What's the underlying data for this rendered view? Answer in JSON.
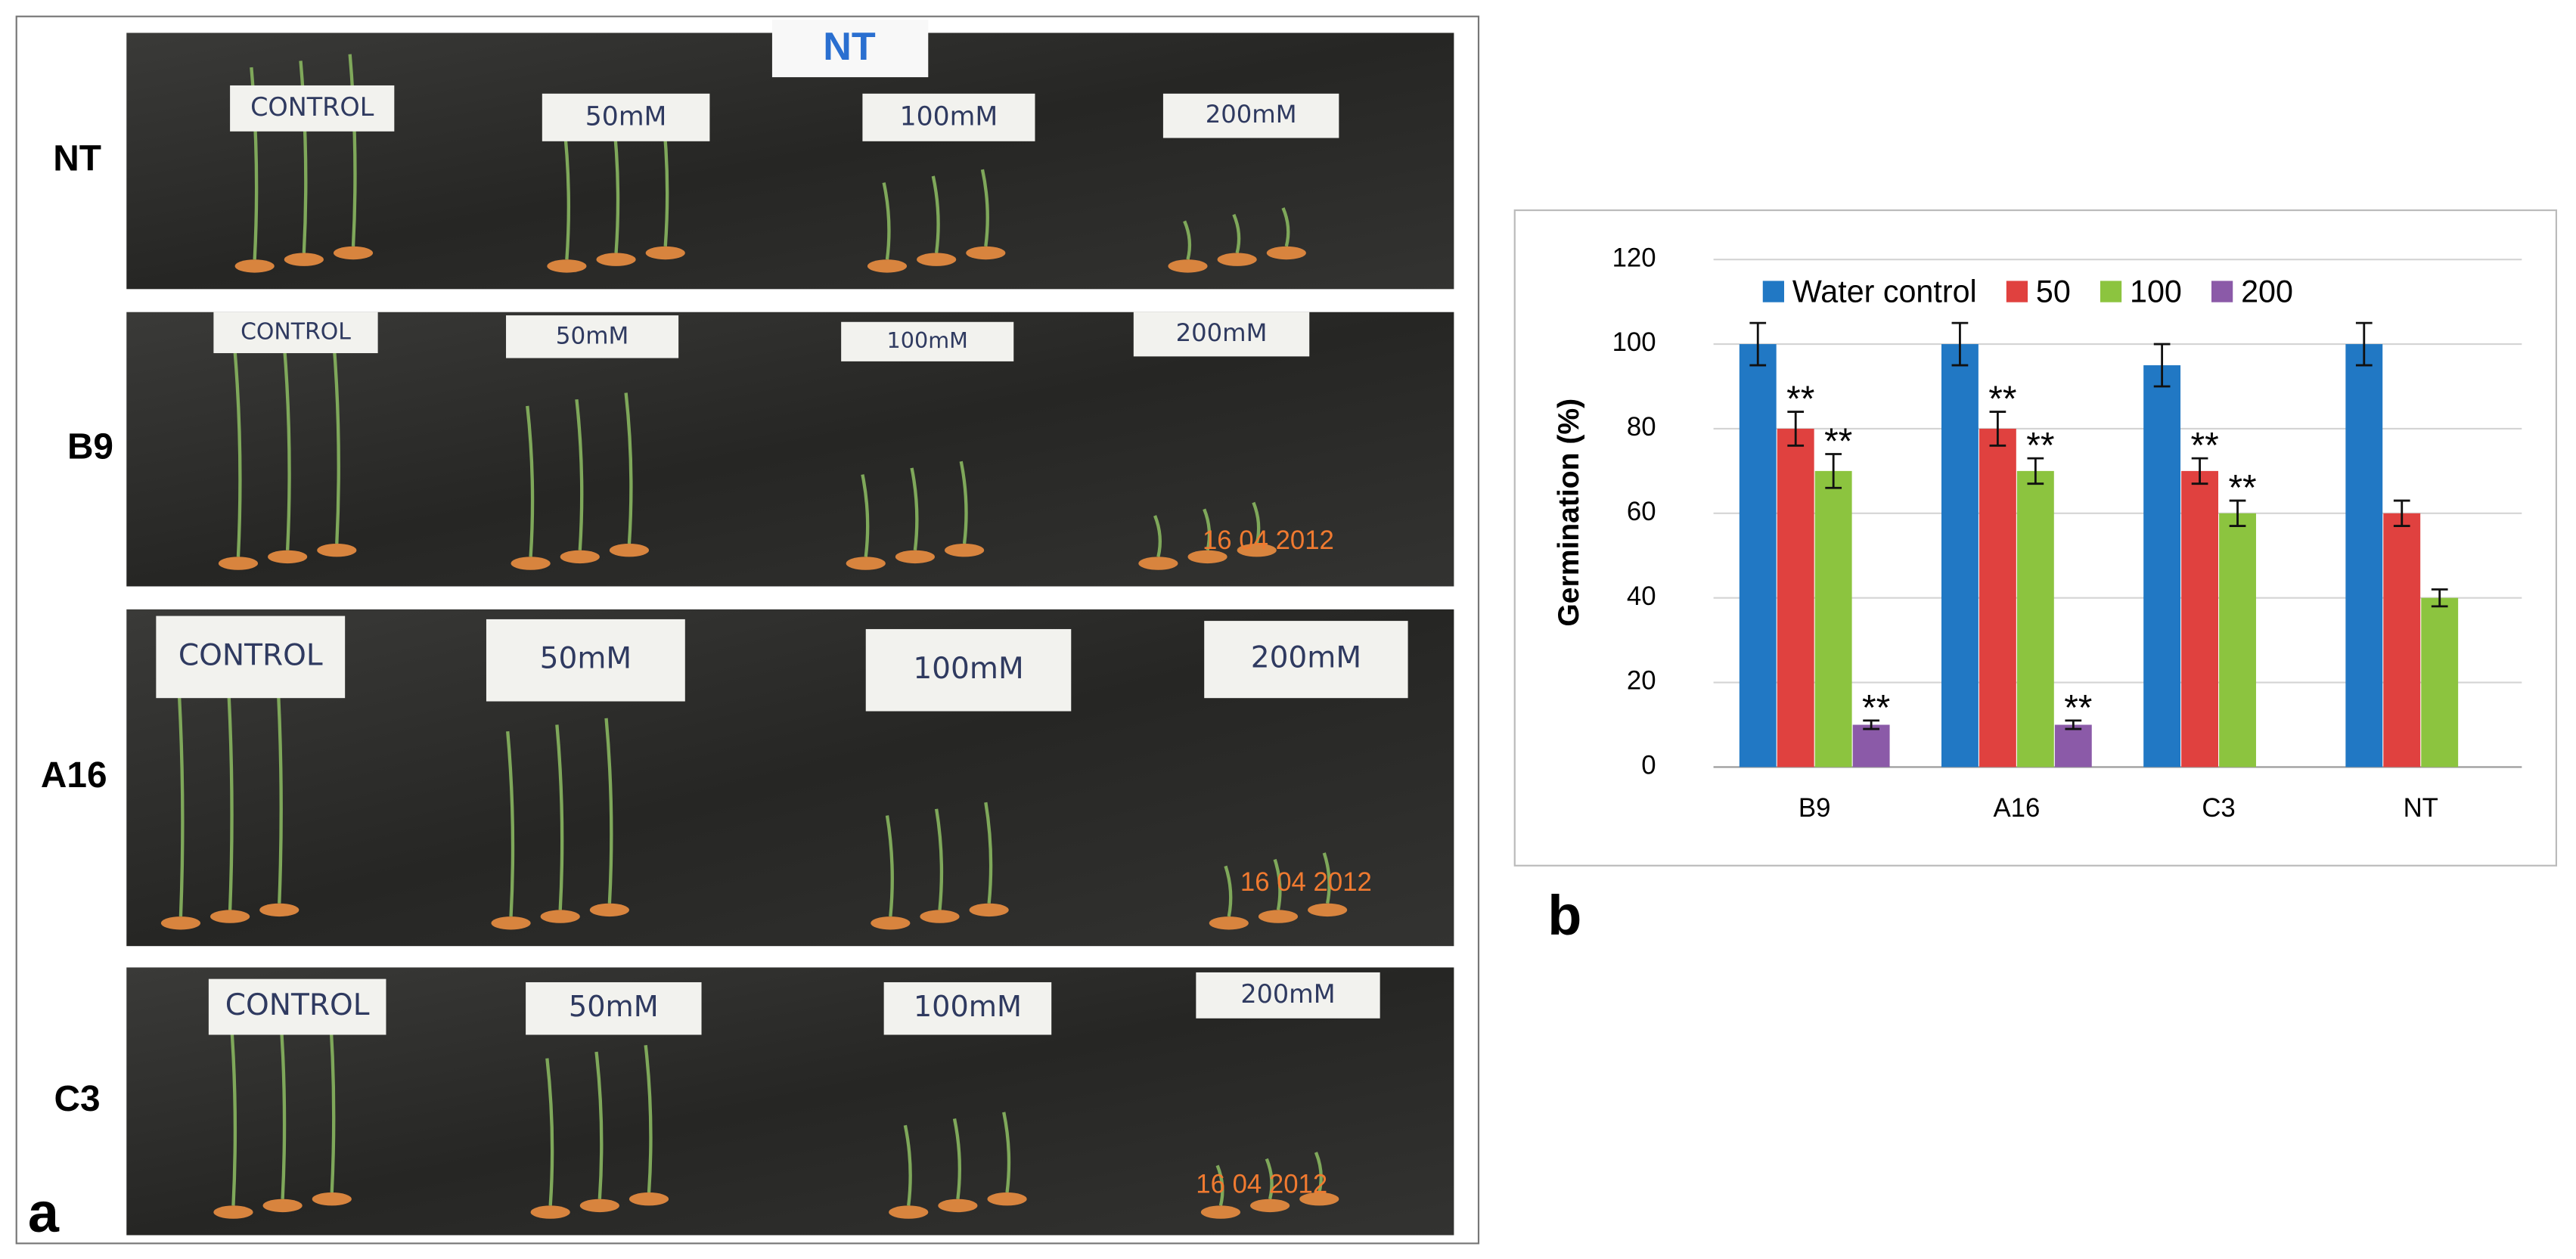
{
  "panel_a": {
    "label": "a",
    "header_card": "NT",
    "rows": [
      {
        "label": "NT",
        "cards": [
          "CONTROL",
          "50mM",
          "100mM",
          "200mM"
        ]
      },
      {
        "label": "B9",
        "cards": [
          "CONTROL",
          "50mM",
          "100mM",
          "200mM"
        ],
        "date": "16 04 2012"
      },
      {
        "label": "A16",
        "cards": [
          "CONTROL",
          "50mM",
          "100mM",
          "200mM"
        ],
        "date": "16 04 2012"
      },
      {
        "label": "C3",
        "cards": [
          "CONTROL",
          "50mM",
          "100mM",
          "200mM"
        ],
        "date": "16 04 2012"
      }
    ]
  },
  "panel_b": {
    "label": "b"
  },
  "chart_data": {
    "type": "bar",
    "y_label": "Germination (%)",
    "categories": [
      "B9",
      "A16",
      "C3",
      "NT"
    ],
    "series": [
      {
        "name": "Water control",
        "color": "#2178c4",
        "values": [
          100,
          100,
          95,
          100
        ],
        "errors": [
          5,
          5,
          5,
          5
        ],
        "significance": [
          null,
          null,
          null,
          null
        ]
      },
      {
        "name": "50",
        "color": "#e0413f",
        "values": [
          80,
          80,
          70,
          60
        ],
        "errors": [
          4,
          4,
          3,
          3
        ],
        "significance": [
          "**",
          "**",
          "**",
          null
        ]
      },
      {
        "name": "100",
        "color": "#8cc43f",
        "values": [
          70,
          70,
          60,
          40
        ],
        "errors": [
          4,
          3,
          3,
          2
        ],
        "significance": [
          "**",
          "**",
          "**",
          null
        ]
      },
      {
        "name": "200",
        "color": "#8b5aa8",
        "values": [
          10,
          10,
          null,
          null
        ],
        "errors": [
          1,
          1,
          null,
          null
        ],
        "significance": [
          "**",
          "**",
          null,
          null
        ]
      }
    ],
    "ylim": [
      0,
      120
    ],
    "yticks": [
      0,
      20,
      40,
      60,
      80,
      100,
      120
    ],
    "grid": true,
    "legend": "top"
  }
}
